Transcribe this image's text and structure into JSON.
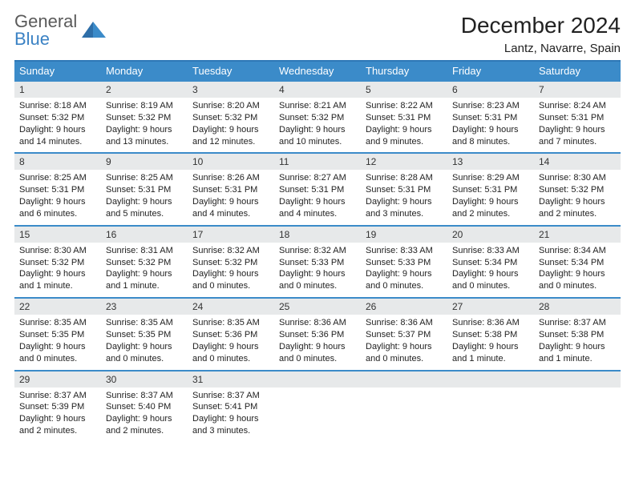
{
  "logo": {
    "word1": "General",
    "word2": "Blue"
  },
  "title": "December 2024",
  "subtitle": "Lantz, Navarre, Spain",
  "colors": {
    "header_bg": "#3b8bc9",
    "header_text": "#ffffff",
    "rule": "#3b8bc9",
    "daynum_bg": "#e7e9ea",
    "body_text": "#222222",
    "logo_gray": "#5a5a5a",
    "logo_blue": "#3b82c4",
    "background": "#ffffff"
  },
  "day_names": [
    "Sunday",
    "Monday",
    "Tuesday",
    "Wednesday",
    "Thursday",
    "Friday",
    "Saturday"
  ],
  "weeks": [
    [
      {
        "n": "1",
        "sr": "Sunrise: 8:18 AM",
        "ss": "Sunset: 5:32 PM",
        "dl1": "Daylight: 9 hours",
        "dl2": "and 14 minutes."
      },
      {
        "n": "2",
        "sr": "Sunrise: 8:19 AM",
        "ss": "Sunset: 5:32 PM",
        "dl1": "Daylight: 9 hours",
        "dl2": "and 13 minutes."
      },
      {
        "n": "3",
        "sr": "Sunrise: 8:20 AM",
        "ss": "Sunset: 5:32 PM",
        "dl1": "Daylight: 9 hours",
        "dl2": "and 12 minutes."
      },
      {
        "n": "4",
        "sr": "Sunrise: 8:21 AM",
        "ss": "Sunset: 5:32 PM",
        "dl1": "Daylight: 9 hours",
        "dl2": "and 10 minutes."
      },
      {
        "n": "5",
        "sr": "Sunrise: 8:22 AM",
        "ss": "Sunset: 5:31 PM",
        "dl1": "Daylight: 9 hours",
        "dl2": "and 9 minutes."
      },
      {
        "n": "6",
        "sr": "Sunrise: 8:23 AM",
        "ss": "Sunset: 5:31 PM",
        "dl1": "Daylight: 9 hours",
        "dl2": "and 8 minutes."
      },
      {
        "n": "7",
        "sr": "Sunrise: 8:24 AM",
        "ss": "Sunset: 5:31 PM",
        "dl1": "Daylight: 9 hours",
        "dl2": "and 7 minutes."
      }
    ],
    [
      {
        "n": "8",
        "sr": "Sunrise: 8:25 AM",
        "ss": "Sunset: 5:31 PM",
        "dl1": "Daylight: 9 hours",
        "dl2": "and 6 minutes."
      },
      {
        "n": "9",
        "sr": "Sunrise: 8:25 AM",
        "ss": "Sunset: 5:31 PM",
        "dl1": "Daylight: 9 hours",
        "dl2": "and 5 minutes."
      },
      {
        "n": "10",
        "sr": "Sunrise: 8:26 AM",
        "ss": "Sunset: 5:31 PM",
        "dl1": "Daylight: 9 hours",
        "dl2": "and 4 minutes."
      },
      {
        "n": "11",
        "sr": "Sunrise: 8:27 AM",
        "ss": "Sunset: 5:31 PM",
        "dl1": "Daylight: 9 hours",
        "dl2": "and 4 minutes."
      },
      {
        "n": "12",
        "sr": "Sunrise: 8:28 AM",
        "ss": "Sunset: 5:31 PM",
        "dl1": "Daylight: 9 hours",
        "dl2": "and 3 minutes."
      },
      {
        "n": "13",
        "sr": "Sunrise: 8:29 AM",
        "ss": "Sunset: 5:31 PM",
        "dl1": "Daylight: 9 hours",
        "dl2": "and 2 minutes."
      },
      {
        "n": "14",
        "sr": "Sunrise: 8:30 AM",
        "ss": "Sunset: 5:32 PM",
        "dl1": "Daylight: 9 hours",
        "dl2": "and 2 minutes."
      }
    ],
    [
      {
        "n": "15",
        "sr": "Sunrise: 8:30 AM",
        "ss": "Sunset: 5:32 PM",
        "dl1": "Daylight: 9 hours",
        "dl2": "and 1 minute."
      },
      {
        "n": "16",
        "sr": "Sunrise: 8:31 AM",
        "ss": "Sunset: 5:32 PM",
        "dl1": "Daylight: 9 hours",
        "dl2": "and 1 minute."
      },
      {
        "n": "17",
        "sr": "Sunrise: 8:32 AM",
        "ss": "Sunset: 5:32 PM",
        "dl1": "Daylight: 9 hours",
        "dl2": "and 0 minutes."
      },
      {
        "n": "18",
        "sr": "Sunrise: 8:32 AM",
        "ss": "Sunset: 5:33 PM",
        "dl1": "Daylight: 9 hours",
        "dl2": "and 0 minutes."
      },
      {
        "n": "19",
        "sr": "Sunrise: 8:33 AM",
        "ss": "Sunset: 5:33 PM",
        "dl1": "Daylight: 9 hours",
        "dl2": "and 0 minutes."
      },
      {
        "n": "20",
        "sr": "Sunrise: 8:33 AM",
        "ss": "Sunset: 5:34 PM",
        "dl1": "Daylight: 9 hours",
        "dl2": "and 0 minutes."
      },
      {
        "n": "21",
        "sr": "Sunrise: 8:34 AM",
        "ss": "Sunset: 5:34 PM",
        "dl1": "Daylight: 9 hours",
        "dl2": "and 0 minutes."
      }
    ],
    [
      {
        "n": "22",
        "sr": "Sunrise: 8:35 AM",
        "ss": "Sunset: 5:35 PM",
        "dl1": "Daylight: 9 hours",
        "dl2": "and 0 minutes."
      },
      {
        "n": "23",
        "sr": "Sunrise: 8:35 AM",
        "ss": "Sunset: 5:35 PM",
        "dl1": "Daylight: 9 hours",
        "dl2": "and 0 minutes."
      },
      {
        "n": "24",
        "sr": "Sunrise: 8:35 AM",
        "ss": "Sunset: 5:36 PM",
        "dl1": "Daylight: 9 hours",
        "dl2": "and 0 minutes."
      },
      {
        "n": "25",
        "sr": "Sunrise: 8:36 AM",
        "ss": "Sunset: 5:36 PM",
        "dl1": "Daylight: 9 hours",
        "dl2": "and 0 minutes."
      },
      {
        "n": "26",
        "sr": "Sunrise: 8:36 AM",
        "ss": "Sunset: 5:37 PM",
        "dl1": "Daylight: 9 hours",
        "dl2": "and 0 minutes."
      },
      {
        "n": "27",
        "sr": "Sunrise: 8:36 AM",
        "ss": "Sunset: 5:38 PM",
        "dl1": "Daylight: 9 hours",
        "dl2": "and 1 minute."
      },
      {
        "n": "28",
        "sr": "Sunrise: 8:37 AM",
        "ss": "Sunset: 5:38 PM",
        "dl1": "Daylight: 9 hours",
        "dl2": "and 1 minute."
      }
    ],
    [
      {
        "n": "29",
        "sr": "Sunrise: 8:37 AM",
        "ss": "Sunset: 5:39 PM",
        "dl1": "Daylight: 9 hours",
        "dl2": "and 2 minutes."
      },
      {
        "n": "30",
        "sr": "Sunrise: 8:37 AM",
        "ss": "Sunset: 5:40 PM",
        "dl1": "Daylight: 9 hours",
        "dl2": "and 2 minutes."
      },
      {
        "n": "31",
        "sr": "Sunrise: 8:37 AM",
        "ss": "Sunset: 5:41 PM",
        "dl1": "Daylight: 9 hours",
        "dl2": "and 3 minutes."
      },
      {
        "empty": true
      },
      {
        "empty": true
      },
      {
        "empty": true
      },
      {
        "empty": true
      }
    ]
  ]
}
